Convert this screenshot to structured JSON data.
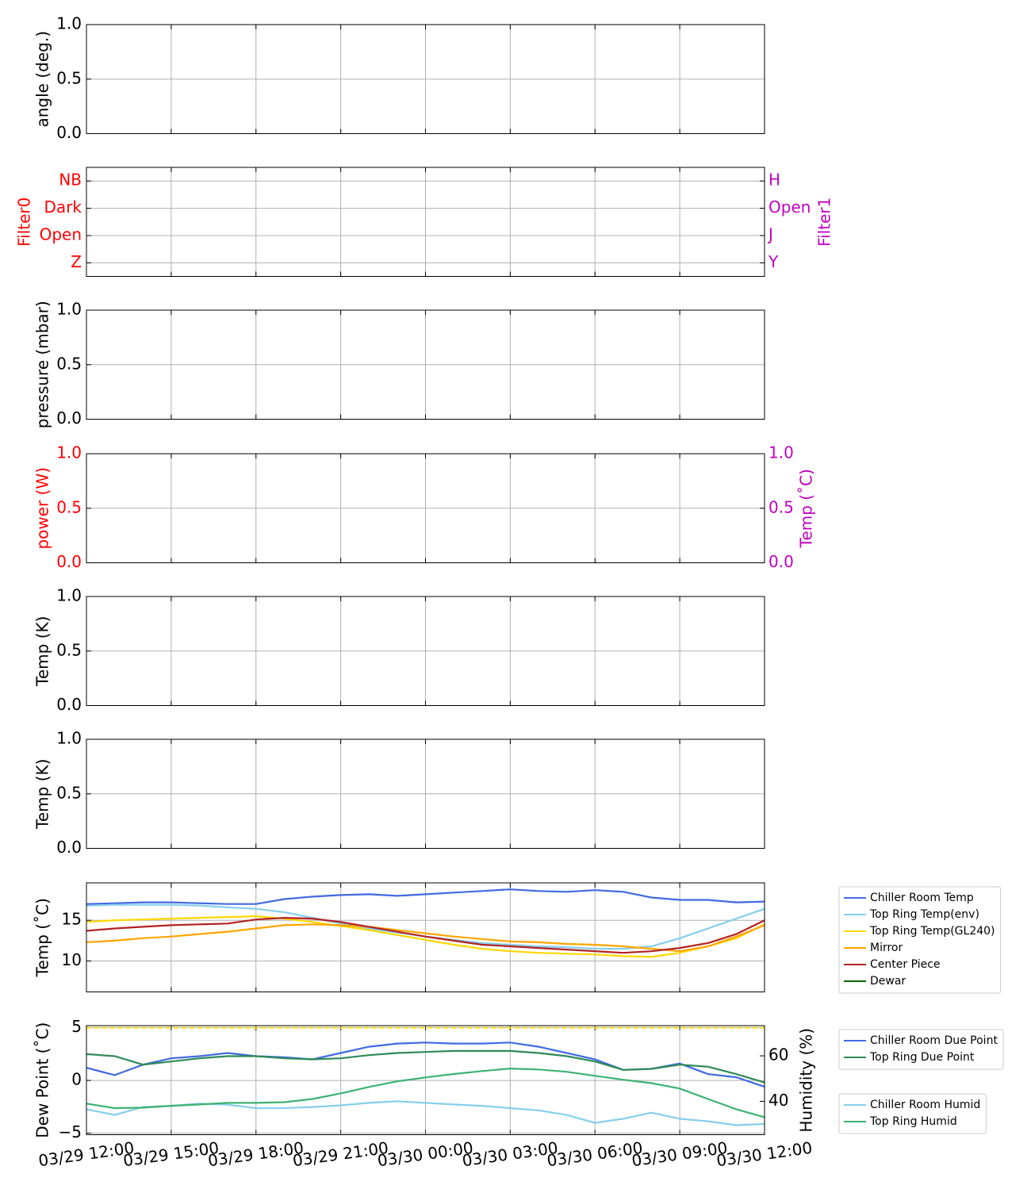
{
  "chart_data": [
    {
      "type": "line",
      "ylabel": "angle (deg.)",
      "ylim": [
        0,
        1
      ],
      "yticks": [
        {
          "value": 0,
          "label": "0.0"
        },
        0.5,
        {
          "value": 1,
          "label": "1.0"
        }
      ],
      "grid": true
    },
    {
      "type": "line",
      "ylabel": "Filter0",
      "ylabel_color": "#ff0000",
      "ycategories": [
        "Z",
        "Open",
        "Dark",
        "NB"
      ],
      "ylim": [
        -0.5,
        3.5
      ],
      "y2label": "Filter1",
      "y2label_color": "#c000c0",
      "y2categories": [
        "Y",
        "J",
        "Open",
        "H"
      ],
      "y2lim": [
        -0.5,
        3.5
      ],
      "grid": true
    },
    {
      "type": "line",
      "ylabel": "pressure (mbar)",
      "ylim": [
        0,
        1
      ],
      "yticks": [
        {
          "value": 0,
          "label": "0.0"
        },
        0.5,
        {
          "value": 1,
          "label": "1.0"
        }
      ],
      "grid": true
    },
    {
      "type": "line",
      "ylabel": "power (W)",
      "ylabel_color": "#ff0000",
      "ylim": [
        0,
        1
      ],
      "yticks": [
        {
          "value": 0,
          "label": "0.0"
        },
        0.5,
        {
          "value": 1,
          "label": "1.0"
        }
      ],
      "y2label": "Temp (˚C)",
      "y2label_color": "#c000c0",
      "y2lim": [
        0,
        1
      ],
      "y2ticks": [
        {
          "value": 0,
          "label": "0.0"
        },
        0.5,
        {
          "value": 1,
          "label": "1.0"
        }
      ],
      "grid": true
    },
    {
      "type": "line",
      "ylabel": "Temp (K)",
      "ylim": [
        0,
        1
      ],
      "yticks": [
        {
          "value": 0,
          "label": "0.0"
        },
        0.5,
        {
          "value": 1,
          "label": "1.0"
        }
      ],
      "grid": true
    },
    {
      "type": "line",
      "ylabel": "Temp (K)",
      "ylim": [
        0,
        1
      ],
      "yticks": [
        {
          "value": 0,
          "label": "0.0"
        },
        0.5,
        {
          "value": 1,
          "label": "1.0"
        }
      ],
      "grid": true
    },
    {
      "type": "line",
      "ylabel": "Temp (˚C)",
      "ylim": [
        6.2,
        19.6
      ],
      "yticks": [
        10,
        15
      ],
      "grid": true,
      "legend": "outside right",
      "series": [
        {
          "name": "Chiller Room Temp",
          "color": "#4169e1",
          "values": [
            17.0,
            17.1,
            17.2,
            17.2,
            17.1,
            17.0,
            17.0,
            17.6,
            17.9,
            18.1,
            18.2,
            18.0,
            18.2,
            18.4,
            18.6,
            18.8,
            18.6,
            18.5,
            18.7,
            18.5,
            17.8,
            17.5,
            17.5,
            17.2,
            17.3
          ]
        },
        {
          "name": "Top Ring Temp(env)",
          "color": "#87ceeb",
          "values": [
            16.8,
            16.9,
            16.9,
            16.9,
            16.8,
            16.6,
            16.4,
            16.0,
            15.3,
            14.6,
            14.0,
            13.5,
            13.0,
            12.6,
            12.2,
            12.0,
            11.8,
            11.7,
            11.5,
            11.5,
            11.8,
            12.8,
            14.0,
            15.2,
            16.4
          ]
        },
        {
          "name": "Top Ring Temp(GL240)",
          "color": "#ffd700",
          "values": [
            14.8,
            15.0,
            15.1,
            15.2,
            15.3,
            15.4,
            15.5,
            15.2,
            14.8,
            14.3,
            13.8,
            13.2,
            12.6,
            12.0,
            11.5,
            11.2,
            11.0,
            10.9,
            10.8,
            10.6,
            10.5,
            11.0,
            11.8,
            12.8,
            14.5
          ]
        },
        {
          "name": "Mirror",
          "color": "#ffa500",
          "values": [
            12.3,
            12.5,
            12.8,
            13.0,
            13.3,
            13.6,
            14.0,
            14.4,
            14.5,
            14.4,
            14.2,
            13.8,
            13.4,
            13.0,
            12.7,
            12.4,
            12.3,
            12.1,
            12.0,
            11.8,
            11.5,
            11.2,
            11.8,
            13.0,
            14.4
          ]
        },
        {
          "name": "Center Piece",
          "color": "#b22222",
          "values": [
            13.7,
            14.0,
            14.2,
            14.4,
            14.5,
            14.6,
            15.1,
            15.3,
            15.2,
            14.8,
            14.2,
            13.6,
            13.0,
            12.5,
            12.0,
            11.8,
            11.6,
            11.4,
            11.2,
            11.0,
            11.2,
            11.6,
            12.2,
            13.3,
            15.0
          ]
        },
        {
          "name": "Dewar",
          "color": "#006400",
          "values": [
            null,
            null,
            null,
            null,
            null,
            null,
            null,
            null,
            null,
            null,
            null,
            null,
            null,
            null,
            null,
            null,
            null,
            null,
            null,
            null,
            null,
            null,
            null,
            null,
            null
          ]
        }
      ]
    },
    {
      "type": "line",
      "ylabel": "Dew Point (˚C)",
      "ylim": [
        -5.15,
        5.2
      ],
      "yticks": [
        {
          "value": -5,
          "label": "−5"
        },
        0,
        5
      ],
      "y2label": "Humidity (%)",
      "y2lim": [
        25.3,
        73.3
      ],
      "y2ticks": [
        40,
        60
      ],
      "grid": true,
      "legend": "outside right",
      "hlines": [
        {
          "value": 5,
          "color": "#ffd700"
        }
      ],
      "xlim": [
        "03/29 12:00",
        "03/30 12:00"
      ],
      "xticks": [
        "03/29 12:00",
        "03/29 15:00",
        "03/29 18:00",
        "03/29 21:00",
        "03/30 00:00",
        "03/30 03:00",
        "03/30 06:00",
        "03/30 09:00",
        "03/30 12:00"
      ],
      "x": [
        "03/29 12:00",
        "03/29 13:00",
        "03/29 14:00",
        "03/29 15:00",
        "03/29 16:00",
        "03/29 17:00",
        "03/29 18:00",
        "03/29 19:00",
        "03/29 20:00",
        "03/29 21:00",
        "03/29 22:00",
        "03/29 23:00",
        "03/30 00:00",
        "03/30 01:00",
        "03/30 02:00",
        "03/30 03:00",
        "03/30 04:00",
        "03/30 05:00",
        "03/30 06:00",
        "03/30 07:00",
        "03/30 08:00",
        "03/30 09:00",
        "03/30 10:00",
        "03/30 11:00",
        "03/30 12:00"
      ],
      "series": [
        {
          "name": "Chiller Room Due Point",
          "color": "#4169e1",
          "values": [
            1.2,
            0.5,
            1.5,
            2.1,
            2.3,
            2.6,
            2.3,
            2.2,
            2.0,
            2.6,
            3.2,
            3.5,
            3.6,
            3.5,
            3.5,
            3.6,
            3.2,
            2.6,
            2.0,
            1.0,
            1.1,
            1.6,
            0.6,
            0.3,
            -0.6
          ]
        },
        {
          "name": "Top Ring Due Point",
          "color": "#2e8b57",
          "values": [
            2.5,
            2.3,
            1.5,
            1.8,
            2.1,
            2.3,
            2.3,
            2.1,
            2.0,
            2.1,
            2.4,
            2.6,
            2.7,
            2.8,
            2.8,
            2.8,
            2.6,
            2.3,
            1.8,
            1.0,
            1.1,
            1.5,
            1.3,
            0.6,
            -0.2
          ]
        },
        {
          "name": "Chiller Room Humid",
          "color": "#87ceeb",
          "axis": "y2",
          "values": [
            36.5,
            34,
            37.5,
            38,
            39,
            38.5,
            37,
            37,
            37.5,
            38.2,
            39.3,
            40,
            39.3,
            38.6,
            38,
            37,
            36,
            34,
            30.5,
            32.3,
            35,
            32.3,
            31.2,
            29.5,
            30
          ]
        },
        {
          "name": "Top Ring Humid",
          "color": "#3cb371",
          "axis": "y2",
          "values": [
            39,
            37,
            37.2,
            38,
            38.6,
            39.3,
            39.3,
            39.6,
            41,
            43.5,
            46.3,
            48.8,
            50.5,
            52,
            53.3,
            54.4,
            54,
            53,
            51.2,
            49.5,
            48,
            45.6,
            41,
            36.5,
            33
          ]
        }
      ]
    }
  ]
}
